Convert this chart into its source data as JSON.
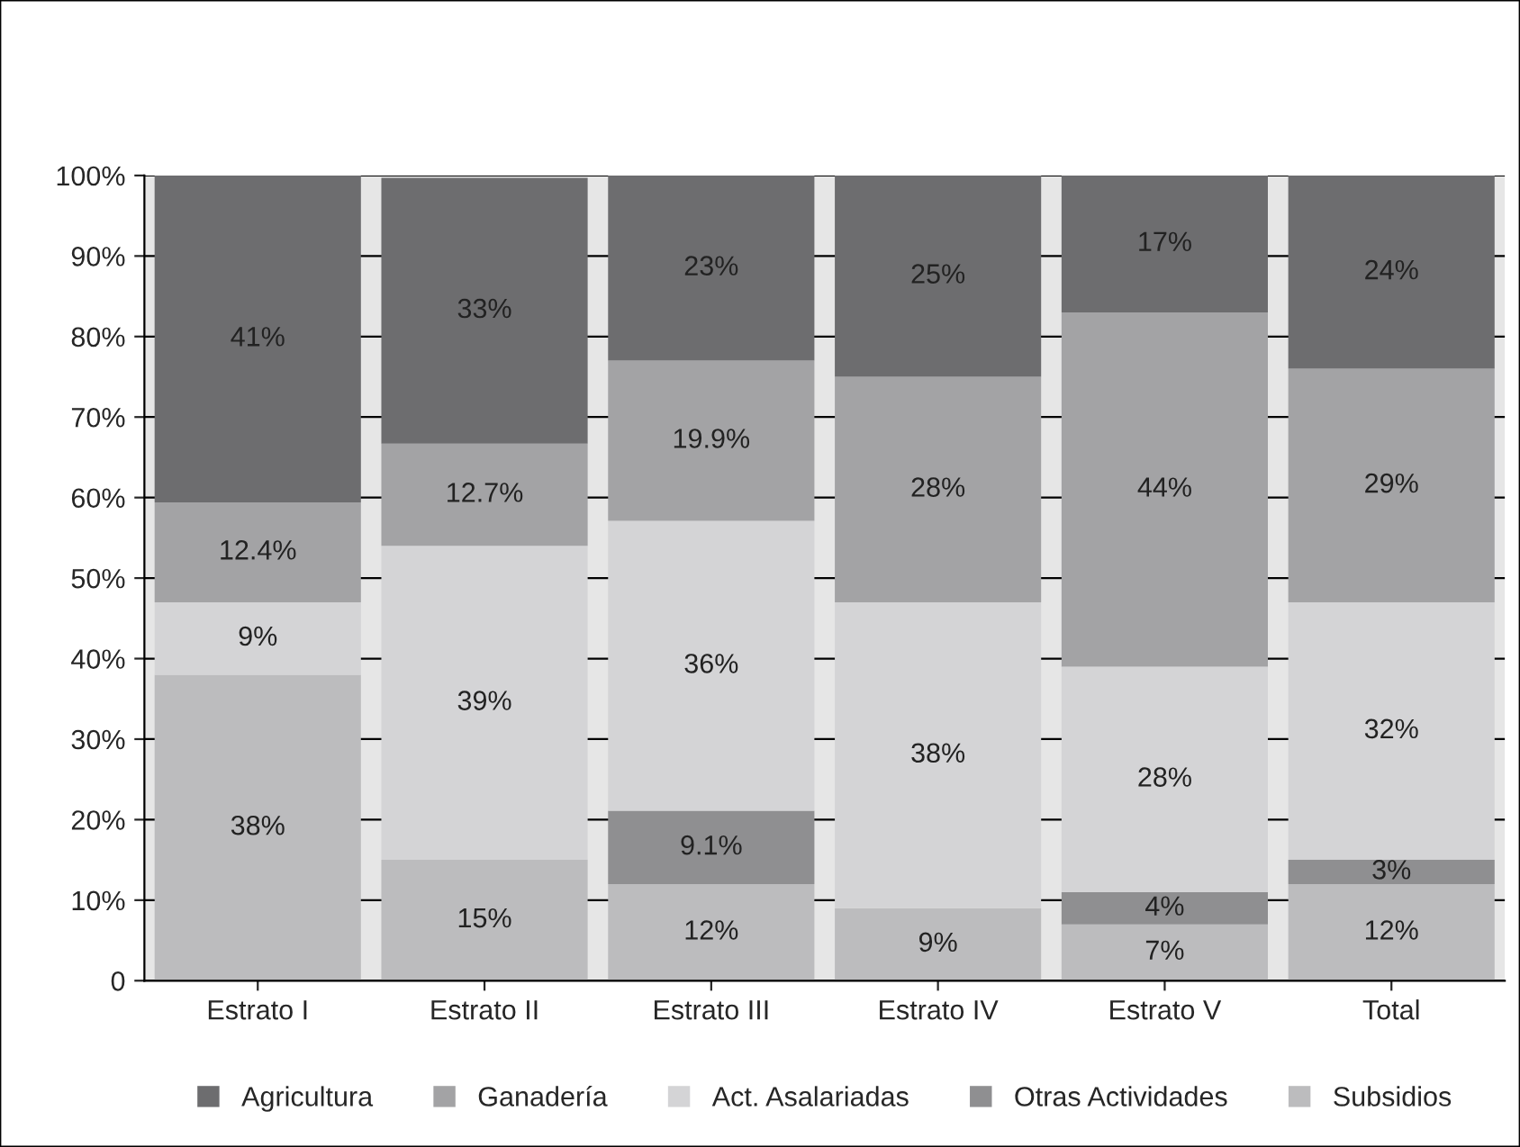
{
  "chart_data": {
    "type": "bar",
    "stacked": true,
    "categories": [
      "Estrato I",
      "Estrato II",
      "Estrato III",
      "Estrato IV",
      "Estrato V",
      "Total"
    ],
    "series": [
      {
        "name": "Subsidios",
        "color": "#bcbcbe",
        "values": [
          38,
          15,
          12,
          9,
          7,
          12
        ],
        "value_labels": [
          "38%",
          "15%",
          "12%",
          "9%",
          "7%",
          "12%"
        ]
      },
      {
        "name": "Otras Actividades",
        "color": "#8f8f91",
        "values": [
          null,
          null,
          9.1,
          null,
          4,
          3
        ],
        "value_labels": [
          null,
          null,
          "9.1%",
          null,
          "4%",
          "3%"
        ]
      },
      {
        "name": "Act. Asalariadas",
        "color": "#d4d4d6",
        "values": [
          9,
          39,
          36,
          38,
          28,
          32
        ],
        "value_labels": [
          "9%",
          "39%",
          "36%",
          "38%",
          "28%",
          "32%"
        ]
      },
      {
        "name": "Ganadería",
        "color": "#a3a3a5",
        "values": [
          12.4,
          12.7,
          19.9,
          28,
          44,
          29
        ],
        "value_labels": [
          "12.4%",
          "12.7%",
          "19.9%",
          "28%",
          "44%",
          "29%"
        ]
      },
      {
        "name": "Agricultura",
        "color": "#6d6d6f",
        "values": [
          41,
          33,
          23,
          25,
          17,
          24
        ],
        "value_labels": [
          "41%",
          "33%",
          "23%",
          "25%",
          "17%",
          "24%"
        ]
      }
    ],
    "ylim": [
      0,
      100
    ],
    "yticks": [
      0,
      {
        "value": 10,
        "label": "10%"
      },
      {
        "value": 20,
        "label": "20%"
      },
      {
        "value": 30,
        "label": "30%"
      },
      {
        "value": 40,
        "label": "40%"
      },
      {
        "value": 50,
        "label": "50%"
      },
      {
        "value": 60,
        "label": "60%"
      },
      {
        "value": 70,
        "label": "70%"
      },
      {
        "value": 80,
        "label": "80%"
      },
      {
        "value": 90,
        "label": "90%"
      },
      {
        "value": 100,
        "label": "100%"
      }
    ],
    "grid": "y",
    "legend": "bottom"
  }
}
